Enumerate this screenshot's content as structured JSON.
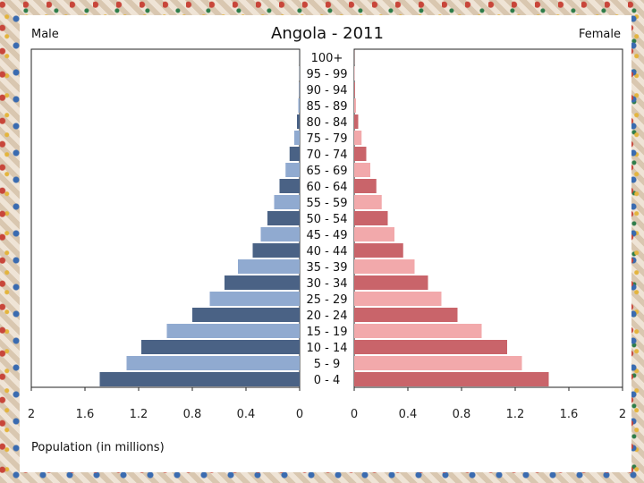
{
  "chart_data": {
    "type": "bar",
    "subtype": "population-pyramid",
    "title": "Angola - 2011",
    "left_label": "Male",
    "right_label": "Female",
    "xlabel": "Population (in millions)",
    "xlim": [
      0,
      2
    ],
    "x_ticks_left": [
      "2",
      "1.6",
      "1.2",
      "0.8",
      "0.4",
      "0"
    ],
    "x_ticks_right": [
      "0",
      "0.4",
      "0.8",
      "1.2",
      "1.6",
      "2"
    ],
    "categories": [
      "100+",
      "95 - 99",
      "90 - 94",
      "85 - 89",
      "80 - 84",
      "75 - 79",
      "70 - 74",
      "65 - 69",
      "60 - 64",
      "55 - 59",
      "50 - 54",
      "45 - 49",
      "40 - 44",
      "35 - 39",
      "30 - 34",
      "25 - 29",
      "20 - 24",
      "15 - 19",
      "10 - 14",
      "5 - 9",
      "0 - 4"
    ],
    "series": [
      {
        "name": "Male",
        "values": [
          0.001,
          0.002,
          0.004,
          0.01,
          0.02,
          0.04,
          0.075,
          0.105,
          0.15,
          0.19,
          0.24,
          0.29,
          0.35,
          0.46,
          0.56,
          0.67,
          0.8,
          0.99,
          1.18,
          1.29,
          1.49
        ]
      },
      {
        "name": "Female",
        "values": [
          0.001,
          0.003,
          0.006,
          0.013,
          0.03,
          0.055,
          0.09,
          0.12,
          0.165,
          0.205,
          0.25,
          0.3,
          0.365,
          0.45,
          0.55,
          0.65,
          0.77,
          0.95,
          1.14,
          1.25,
          1.45
        ]
      }
    ],
    "colors": {
      "male_dark": "#4a6285",
      "male_light": "#90aad0",
      "female_dark": "#c9646a",
      "female_light": "#f2a9ab"
    }
  }
}
